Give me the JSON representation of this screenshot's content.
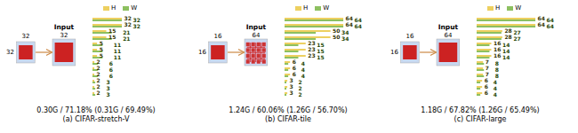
{
  "chart_data": [
    {
      "type": "bar",
      "orientation": "horizontal",
      "title": "(a) CIFAR-stretch-V",
      "subtitle": "0.30G / 71.18% (0.31G / 69.49%)",
      "categories": [
        null,
        null,
        null,
        null,
        null,
        null,
        null,
        null,
        null,
        null,
        null,
        null,
        null
      ],
      "series": [
        {
          "name": "H",
          "color": "#EDD060",
          "values": [
            32,
            32,
            15,
            15,
            5,
            5,
            5,
            2,
            2,
            2,
            2,
            2,
            2
          ]
        },
        {
          "name": "W",
          "color": "#8DC060",
          "values": [
            32,
            32,
            21,
            21,
            11,
            11,
            11,
            6,
            6,
            6,
            3,
            3,
            3
          ]
        }
      ],
      "xlim": [
        0,
        100.75
      ],
      "data_labels": true,
      "tick_labels": false,
      "annotations": [
        "32",
        "32",
        "Input",
        "32"
      ]
    },
    {
      "type": "bar",
      "orientation": "horizontal",
      "title": "(b) CIFAR-tile",
      "subtitle": "1.24G / 60.06% (1.26G / 56.70%)",
      "categories": [
        null,
        null,
        null,
        null,
        null,
        null,
        null,
        null,
        null,
        null,
        null,
        null,
        null
      ],
      "series": [
        {
          "name": "H",
          "color": "#EDD060",
          "values": [
            64,
            64,
            50,
            50,
            23,
            23,
            23,
            6,
            6,
            6,
            3,
            3,
            3
          ]
        },
        {
          "name": "W",
          "color": "#8DC060",
          "values": [
            64,
            64,
            34,
            34,
            15,
            15,
            15,
            4,
            4,
            4,
            2,
            2,
            2
          ]
        }
      ],
      "xlim": [
        0,
        100.75
      ],
      "data_labels": true,
      "tick_labels": false,
      "annotations": [
        "16",
        "16",
        "Input",
        "64"
      ]
    },
    {
      "type": "bar",
      "orientation": "horizontal",
      "title": "(c) CIFAR-large",
      "subtitle": "1.18G / 67.82% (1.26G / 65.49%)",
      "categories": [
        null,
        null,
        null,
        null,
        null,
        null,
        null,
        null,
        null,
        null,
        null,
        null,
        null
      ],
      "series": [
        {
          "name": "H",
          "color": "#EDD060",
          "values": [
            64,
            64,
            28,
            28,
            16,
            16,
            16,
            7,
            7,
            7,
            6,
            6,
            6
          ]
        },
        {
          "name": "W",
          "color": "#8DC060",
          "values": [
            64,
            64,
            27,
            27,
            14,
            14,
            14,
            8,
            8,
            8,
            4,
            4,
            4
          ]
        }
      ],
      "xlim": [
        0,
        100.75
      ],
      "data_labels": true,
      "tick_labels": false,
      "annotations": [
        "16",
        "16",
        "Input",
        "64"
      ]
    }
  ]
}
